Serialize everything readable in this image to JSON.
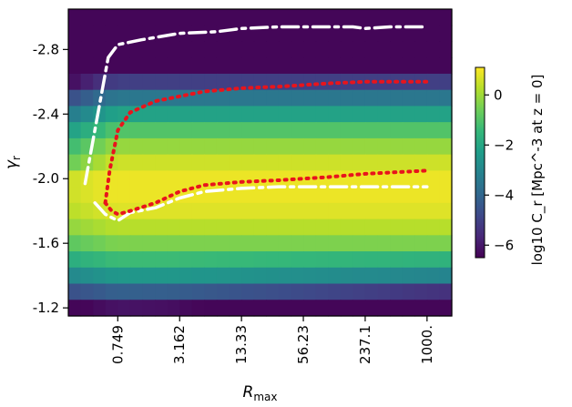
{
  "chart_data": {
    "type": "heatmap",
    "title": "",
    "xlabel": "R_max",
    "ylabel": "γ_r",
    "x_scale": "log",
    "x_tick_labels": [
      "0.749",
      "3.162",
      "13.33",
      "56.23",
      "237.1",
      "1000."
    ],
    "x_tick_values": [
      0.749,
      3.162,
      13.33,
      56.23,
      237.1,
      1000.0
    ],
    "xlim": [
      0.237,
      1778
    ],
    "y_tick_labels": [
      "-2.8",
      "-2.4",
      "-2.0",
      "-1.6",
      "-1.2"
    ],
    "y_tick_values": [
      -2.8,
      -2.4,
      -2.0,
      -1.6,
      -1.2
    ],
    "ylim": [
      -1.15,
      -3.05
    ],
    "grid": false,
    "colorbar": {
      "label": "log10 C_r [Mpc^-3 at z = 0]",
      "tick_labels": [
        "0",
        "−2",
        "−4",
        "−6"
      ],
      "tick_values": [
        0,
        -2,
        -4,
        -6
      ],
      "range": [
        -6.5,
        1.1
      ],
      "colormap": [
        "#440154",
        "#482878",
        "#3e4989",
        "#31688e",
        "#26828e",
        "#1f9e89",
        "#35b779",
        "#6ece58",
        "#b5de2b",
        "#fde725"
      ]
    },
    "grid_x_edges": [
      0.237,
      0.316,
      0.422,
      0.562,
      0.75,
      1.0,
      1.334,
      1.778,
      2.371,
      3.162,
      4.217,
      5.623,
      7.499,
      10.0,
      13.34,
      17.78,
      23.71,
      31.62,
      42.17,
      56.23,
      74.99,
      100.0,
      133.4,
      177.8,
      237.1,
      316.2,
      421.7,
      562.3,
      749.9,
      1000.0,
      1334.0,
      1778.0
    ],
    "grid_y_centers": [
      -3.0,
      -2.9,
      -2.8,
      -2.7,
      -2.6,
      -2.5,
      -2.4,
      -2.3,
      -2.2,
      -2.1,
      -2.0,
      -1.9,
      -1.8,
      -1.7,
      -1.6,
      -1.5,
      -1.4,
      -1.3,
      -1.2
    ],
    "series": [
      {
        "style": "dash-dot",
        "color": "#ffffff",
        "x": [
          0.35,
          0.6,
          0.75,
          1.3,
          3.16,
          7.5,
          13.3,
          31.6,
          56.2,
          100,
          178,
          237,
          422,
          750,
          1000
        ],
        "y": [
          -1.97,
          -2.75,
          -2.83,
          -2.86,
          -2.9,
          -2.91,
          -2.93,
          -2.94,
          -2.94,
          -2.94,
          -2.94,
          -2.93,
          -2.94,
          -2.94,
          -2.94
        ]
      },
      {
        "style": "dash-dot",
        "color": "#ffffff",
        "x": [
          0.44,
          0.56,
          0.75,
          1.0,
          1.8,
          3.16,
          5.6,
          13.3,
          31.6,
          56.2,
          178,
          1000
        ],
        "y": [
          -1.85,
          -1.78,
          -1.74,
          -1.79,
          -1.82,
          -1.88,
          -1.92,
          -1.94,
          -1.95,
          -1.95,
          -1.95,
          -1.95
        ]
      },
      {
        "style": "dotted",
        "color": "#e8141c",
        "x": [
          0.56,
          0.62,
          0.75,
          1.0,
          1.8,
          3.16,
          5.6,
          13.3,
          31.6,
          56.2,
          100,
          237,
          1000
        ],
        "y": [
          -1.85,
          -2.05,
          -2.3,
          -2.41,
          -2.48,
          -2.51,
          -2.54,
          -2.56,
          -2.57,
          -2.58,
          -2.59,
          -2.6,
          -2.6
        ]
      },
      {
        "style": "dotted",
        "color": "#e8141c",
        "x": [
          0.56,
          0.65,
          0.75,
          1.0,
          1.8,
          3.16,
          5.6,
          13.3,
          31.6,
          56.2,
          100,
          237,
          1000
        ],
        "y": [
          -1.85,
          -1.8,
          -1.78,
          -1.8,
          -1.85,
          -1.92,
          -1.96,
          -1.98,
          -1.99,
          -2.0,
          -2.01,
          -2.03,
          -2.05
        ]
      }
    ]
  }
}
